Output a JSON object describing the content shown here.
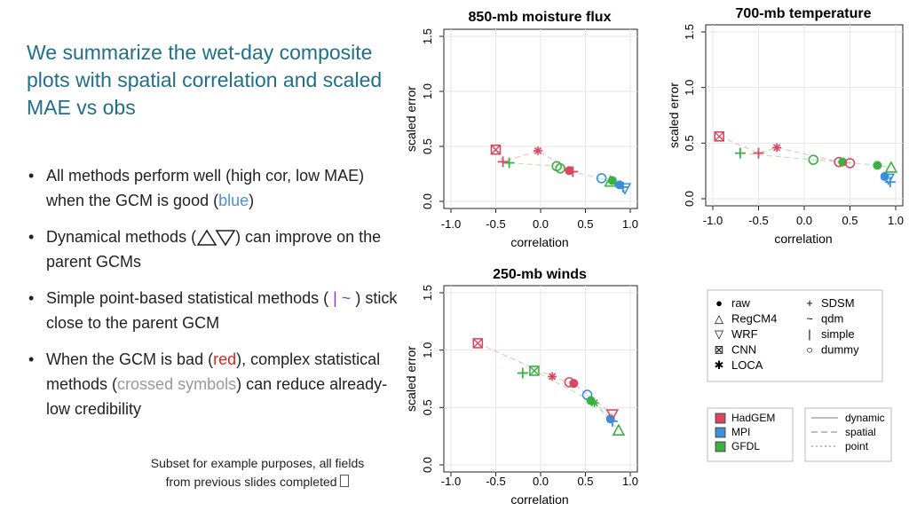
{
  "slide": {
    "title": "We summarize the wet-day composite plots with spatial correlation and scaled MAE vs obs",
    "bullet1_text": "All methods perform well (high cor, low MAE) when the GCM is good (",
    "bullet1_highlight": "blue",
    "bullet1_end": ")",
    "bullet2_pre": "Dynamical methods (",
    "bullet2_post": ") can improve on the parent GCMs",
    "bullet3_pre": "Simple point-based statistical methods (",
    "bullet3_symbols": "| ~",
    "bullet3_post": ") stick close to the parent GCM",
    "bullet4_pre": "When the GCM is bad (",
    "bullet4_red": "red",
    "bullet4_mid": "), complex statistical methods (",
    "bullet4_grey": "crossed symbols",
    "bullet4_post": ") can reduce already-low credibility",
    "footnote_line1": "Subset for example purposes, all fields",
    "footnote_line2": "from previous slides completed"
  },
  "colors": {
    "title": "#1f6f8b",
    "HadGEM": "#d9485f",
    "MPI": "#3b8fd9",
    "GFDL": "#3cb043",
    "highlight_blue": "#4a90d9",
    "highlight_red": "#e8201e",
    "highlight_purple": "#8a3ab9"
  },
  "chart_data": [
    {
      "type": "scatter",
      "title": "850-mb moisture flux",
      "xlabel": "correlation",
      "ylabel": "scaled error",
      "xlim": [
        -1.0,
        1.0
      ],
      "ylim": [
        0.0,
        1.5
      ],
      "xticks": [
        "-1.0",
        "-0.5",
        "0.0",
        "0.5",
        "1.0"
      ],
      "yticks": [
        "0.0",
        "0.5",
        "1.0",
        "1.5"
      ],
      "points": [
        {
          "gcm": "HadGEM",
          "method": "CNN",
          "x": -0.5,
          "y": 0.47
        },
        {
          "gcm": "HadGEM",
          "method": "LOCA",
          "x": -0.03,
          "y": 0.46
        },
        {
          "gcm": "GFDL",
          "method": "SDSM",
          "x": -0.35,
          "y": 0.35
        },
        {
          "gcm": "HadGEM",
          "method": "SDSM",
          "x": -0.42,
          "y": 0.36
        },
        {
          "gcm": "GFDL",
          "method": "dummy",
          "x": 0.18,
          "y": 0.32
        },
        {
          "gcm": "GFDL",
          "method": "dummy",
          "x": 0.22,
          "y": 0.3
        },
        {
          "gcm": "HadGEM",
          "method": "raw",
          "x": 0.32,
          "y": 0.28
        },
        {
          "gcm": "HadGEM",
          "method": "SDSM",
          "x": 0.36,
          "y": 0.27
        },
        {
          "gcm": "MPI",
          "method": "dummy",
          "x": 0.68,
          "y": 0.21
        },
        {
          "gcm": "GFDL",
          "method": "raw",
          "x": 0.8,
          "y": 0.19
        },
        {
          "gcm": "GFDL",
          "method": "RegCM4",
          "x": 0.78,
          "y": 0.18
        },
        {
          "gcm": "MPI",
          "method": "raw",
          "x": 0.88,
          "y": 0.15
        },
        {
          "gcm": "MPI",
          "method": "SDSM",
          "x": 0.92,
          "y": 0.13
        },
        {
          "gcm": "MPI",
          "method": "WRF",
          "x": 0.94,
          "y": 0.12
        }
      ]
    },
    {
      "type": "scatter",
      "title": "700-mb temperature",
      "xlabel": "correlation",
      "ylabel": "scaled error",
      "xlim": [
        -1.0,
        1.0
      ],
      "ylim": [
        0.0,
        1.5
      ],
      "xticks": [
        "-1.0",
        "-0.5",
        "0.0",
        "0.5",
        "1.0"
      ],
      "yticks": [
        "0.0",
        "0.5",
        "1.0",
        "1.5"
      ],
      "points": [
        {
          "gcm": "HadGEM",
          "method": "CNN",
          "x": -0.93,
          "y": 0.56
        },
        {
          "gcm": "HadGEM",
          "method": "LOCA",
          "x": -0.3,
          "y": 0.46
        },
        {
          "gcm": "GFDL",
          "method": "SDSM",
          "x": -0.7,
          "y": 0.41
        },
        {
          "gcm": "HadGEM",
          "method": "SDSM",
          "x": -0.5,
          "y": 0.41
        },
        {
          "gcm": "GFDL",
          "method": "dummy",
          "x": 0.1,
          "y": 0.35
        },
        {
          "gcm": "HadGEM",
          "method": "dummy",
          "x": 0.38,
          "y": 0.33
        },
        {
          "gcm": "GFDL",
          "method": "raw",
          "x": 0.42,
          "y": 0.33
        },
        {
          "gcm": "HadGEM",
          "method": "dummy",
          "x": 0.5,
          "y": 0.32
        },
        {
          "gcm": "GFDL",
          "method": "raw",
          "x": 0.8,
          "y": 0.3
        },
        {
          "gcm": "GFDL",
          "method": "RegCM4",
          "x": 0.95,
          "y": 0.28
        },
        {
          "gcm": "MPI",
          "method": "raw",
          "x": 0.88,
          "y": 0.2
        },
        {
          "gcm": "MPI",
          "method": "WRF",
          "x": 0.92,
          "y": 0.18
        },
        {
          "gcm": "MPI",
          "method": "SDSM",
          "x": 0.94,
          "y": 0.15
        }
      ]
    },
    {
      "type": "scatter",
      "title": "250-mb winds",
      "xlabel": "correlation",
      "ylabel": "scaled error",
      "xlim": [
        -1.0,
        1.0
      ],
      "ylim": [
        0.0,
        1.5
      ],
      "xticks": [
        "-1.0",
        "-0.5",
        "0.0",
        "0.5",
        "1.0"
      ],
      "yticks": [
        "0.0",
        "0.5",
        "1.0",
        "1.5"
      ],
      "points": [
        {
          "gcm": "HadGEM",
          "method": "CNN",
          "x": -0.7,
          "y": 1.06
        },
        {
          "gcm": "GFDL",
          "method": "CNN",
          "x": -0.07,
          "y": 0.82
        },
        {
          "gcm": "GFDL",
          "method": "SDSM",
          "x": -0.2,
          "y": 0.8
        },
        {
          "gcm": "HadGEM",
          "method": "LOCA",
          "x": 0.13,
          "y": 0.77
        },
        {
          "gcm": "HadGEM",
          "method": "dummy",
          "x": 0.32,
          "y": 0.72
        },
        {
          "gcm": "HadGEM",
          "method": "raw",
          "x": 0.37,
          "y": 0.71
        },
        {
          "gcm": "MPI",
          "method": "dummy",
          "x": 0.52,
          "y": 0.61
        },
        {
          "gcm": "GFDL",
          "method": "raw",
          "x": 0.56,
          "y": 0.56
        },
        {
          "gcm": "GFDL",
          "method": "LOCA",
          "x": 0.6,
          "y": 0.54
        },
        {
          "gcm": "MPI",
          "method": "raw",
          "x": 0.78,
          "y": 0.4
        },
        {
          "gcm": "HadGEM",
          "method": "WRF",
          "x": 0.8,
          "y": 0.44
        },
        {
          "gcm": "MPI",
          "method": "SDSM",
          "x": 0.8,
          "y": 0.38
        },
        {
          "gcm": "GFDL",
          "method": "RegCM4",
          "x": 0.87,
          "y": 0.3
        }
      ]
    }
  ],
  "legend_methods": {
    "col1": [
      {
        "symbol": "●",
        "label": "raw"
      },
      {
        "symbol": "△",
        "label": "RegCM4"
      },
      {
        "symbol": "▽",
        "label": "WRF"
      },
      {
        "symbol": "⊠",
        "label": "CNN"
      },
      {
        "symbol": "✱",
        "label": "LOCA"
      }
    ],
    "col2": [
      {
        "symbol": "+",
        "label": "SDSM"
      },
      {
        "symbol": "~",
        "label": "qdm"
      },
      {
        "symbol": "|",
        "label": "simple"
      },
      {
        "symbol": "○",
        "label": "dummy"
      }
    ]
  },
  "legend_gcm": {
    "items": [
      {
        "label": "HadGEM",
        "color": "#d9485f"
      },
      {
        "label": "MPI",
        "color": "#3b8fd9"
      },
      {
        "label": "GFDL",
        "color": "#3cb043"
      }
    ]
  },
  "legend_lines": {
    "items": [
      {
        "label": "dynamic",
        "dash": "solid"
      },
      {
        "label": "spatial",
        "dash": "dashed"
      },
      {
        "label": "point",
        "dash": "dotted"
      }
    ]
  }
}
